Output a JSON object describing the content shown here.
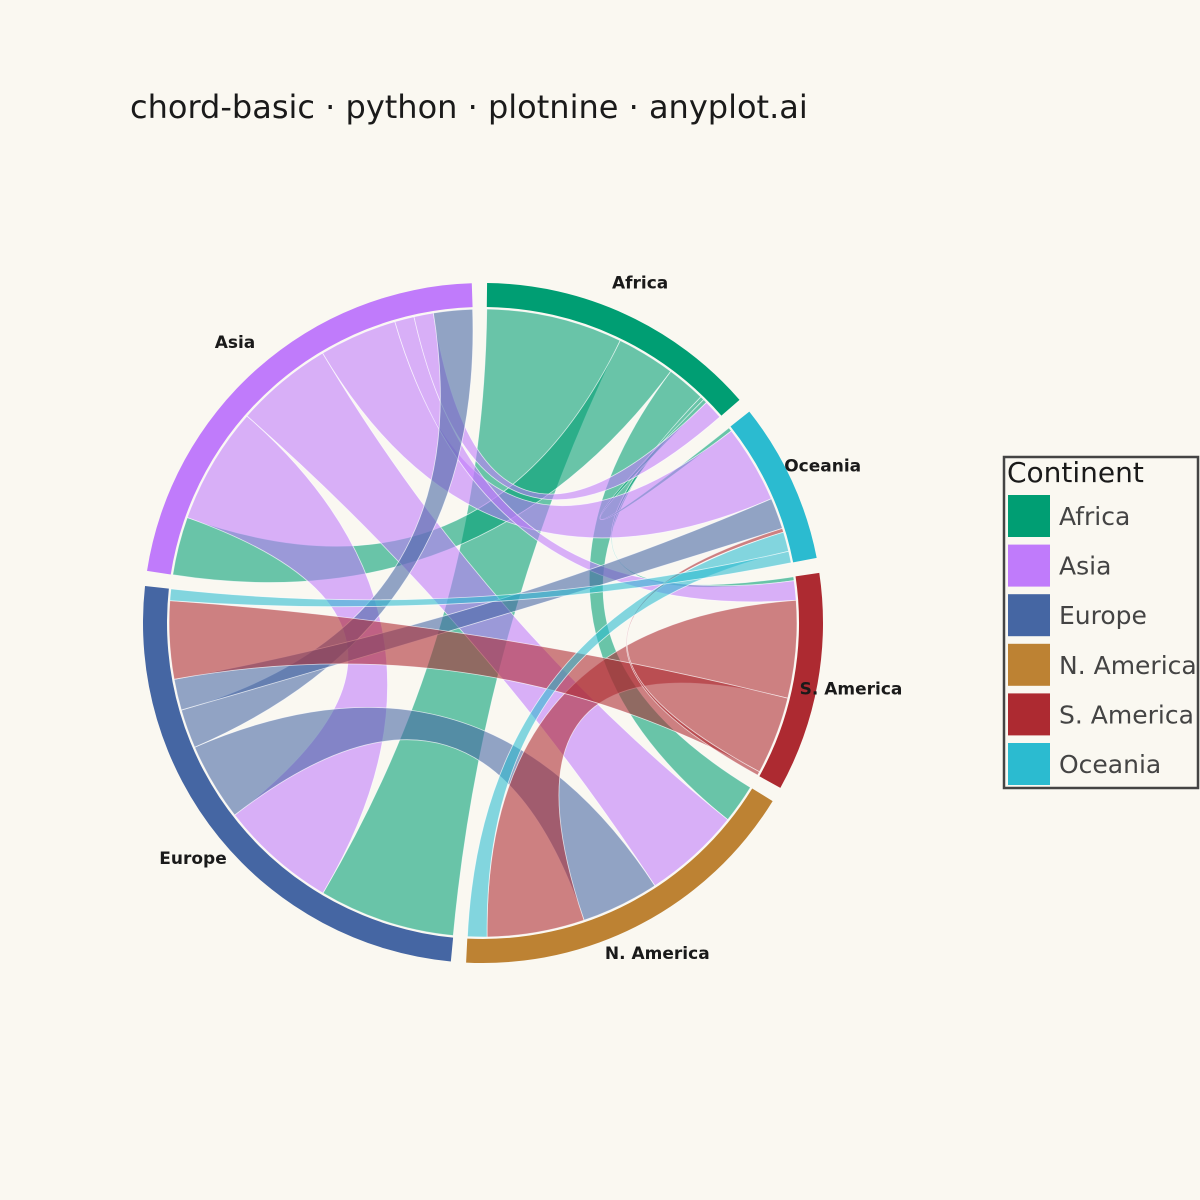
{
  "chart_data": {
    "type": "chord",
    "title": "chord-basic · python · plotnine · anyplot.ai",
    "legend": {
      "title": "Continent",
      "placement": "right"
    },
    "groups": [
      {
        "name": "Africa",
        "color": "#009E73"
      },
      {
        "name": "Oceania",
        "color": "#2BBBD0"
      },
      {
        "name": "S. America",
        "color": "#AD2A31"
      },
      {
        "name": "N. America",
        "color": "#BD8233"
      },
      {
        "name": "Europe",
        "color": "#4566A3"
      },
      {
        "name": "Asia",
        "color": "#C07BFB"
      }
    ],
    "legend_order": [
      "Africa",
      "Asia",
      "Europe",
      "N. America",
      "S. America",
      "Oceania"
    ],
    "flows": [
      {
        "source": "Africa",
        "target": "Europe",
        "value": 35
      },
      {
        "source": "Africa",
        "target": "Asia",
        "value": 15
      },
      {
        "source": "Africa",
        "target": "N. America",
        "value": 10
      },
      {
        "source": "Africa",
        "target": "S. America",
        "value": 1
      },
      {
        "source": "Africa",
        "target": "Oceania",
        "value": 1
      },
      {
        "source": "Asia",
        "target": "Europe",
        "value": 30
      },
      {
        "source": "Asia",
        "target": "N. America",
        "value": 25
      },
      {
        "source": "Asia",
        "target": "Oceania",
        "value": 20
      },
      {
        "source": "Asia",
        "target": "S. America",
        "value": 5
      },
      {
        "source": "Asia",
        "target": "Africa",
        "value": 5
      },
      {
        "source": "Europe",
        "target": "N. America",
        "value": 20
      },
      {
        "source": "Europe",
        "target": "Asia",
        "value": 10
      },
      {
        "source": "Europe",
        "target": "Oceania",
        "value": 8
      },
      {
        "source": "S. America",
        "target": "N. America",
        "value": 25
      },
      {
        "source": "S. America",
        "target": "Europe",
        "value": 20
      },
      {
        "source": "S. America",
        "target": "Oceania",
        "value": 1
      },
      {
        "source": "Oceania",
        "target": "N. America",
        "value": 5
      },
      {
        "source": "Oceania",
        "target": "Europe",
        "value": 3
      }
    ]
  }
}
